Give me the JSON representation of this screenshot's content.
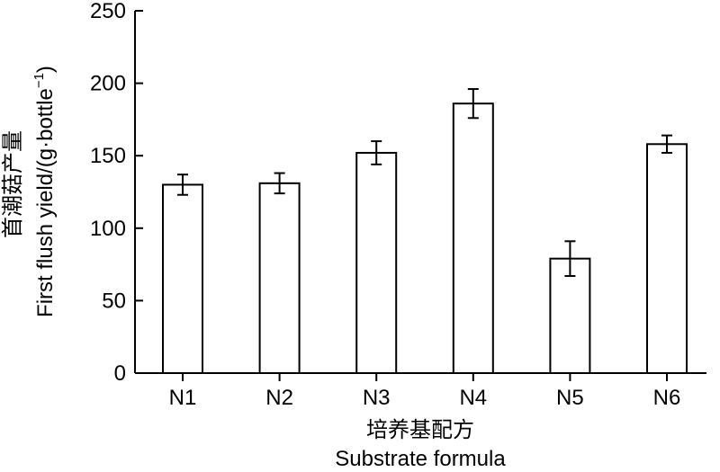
{
  "chart_data": {
    "type": "bar",
    "categories": [
      "N1",
      "N2",
      "N3",
      "N4",
      "N5",
      "N6"
    ],
    "values": [
      130,
      131,
      152,
      186,
      79,
      158
    ],
    "errors": [
      7,
      7,
      8,
      10,
      12,
      6
    ],
    "ylim": [
      0,
      250
    ],
    "yticks": [
      "0",
      "50",
      "100",
      "150",
      "200",
      "250"
    ],
    "ylabel_cn": "首潮菇产量",
    "ylabel_en": "First flush yield/(g·bottle",
    "ylabel_en_sup": "−1",
    "ylabel_en_close": ")",
    "xlabel_cn": "培养基配方",
    "xlabel_en": "Substrate formula",
    "grid": false,
    "legend": "none"
  }
}
